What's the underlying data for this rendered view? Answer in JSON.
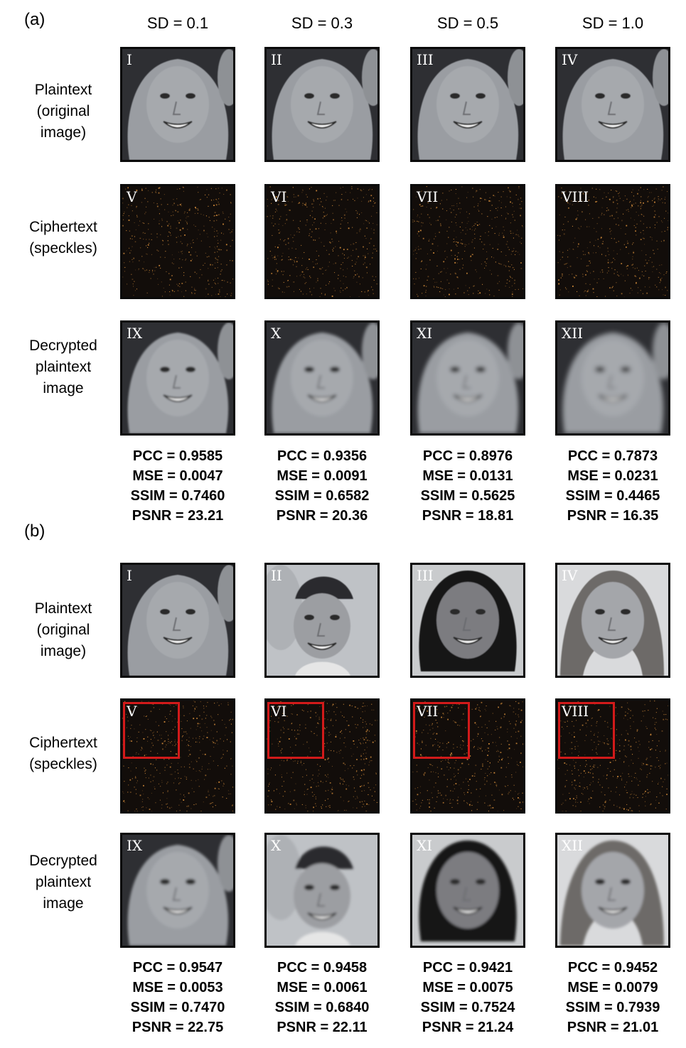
{
  "panels": [
    {
      "label": "(a)",
      "col_headers": [
        "SD = 0.1",
        "SD = 0.3",
        "SD = 0.5",
        "SD = 1.0"
      ],
      "row_labels": [
        "Plaintext\n(original\nimage)",
        "Ciphertext\n(speckles)",
        "Decrypted\nplaintext\nimage"
      ],
      "tiles": [
        [
          "I",
          "II",
          "III",
          "IV"
        ],
        [
          "V",
          "VI",
          "VII",
          "VIII"
        ],
        [
          "IX",
          "X",
          "XI",
          "XII"
        ]
      ],
      "metrics": [
        [
          "PCC = 0.9585",
          "MSE = 0.0047",
          "SSIM = 0.7460",
          "PSNR = 23.21"
        ],
        [
          "PCC = 0.9356",
          "MSE = 0.0091",
          "SSIM = 0.6582",
          "PSNR = 20.36"
        ],
        [
          "PCC = 0.8976",
          "MSE = 0.0131",
          "SSIM = 0.5625",
          "PSNR = 18.81"
        ],
        [
          "PCC = 0.7873",
          "MSE = 0.0231",
          "SSIM = 0.4465",
          "PSNR = 16.35"
        ]
      ]
    },
    {
      "label": "(b)",
      "row_labels": [
        "Plaintext\n(original\nimage)",
        "Ciphertext\n(speckles)",
        "Decrypted\nplaintext\nimage"
      ],
      "tiles": [
        [
          "I",
          "II",
          "III",
          "IV"
        ],
        [
          "V",
          "VI",
          "VII",
          "VIII"
        ],
        [
          "IX",
          "X",
          "XI",
          "XII"
        ]
      ],
      "metrics": [
        [
          "PCC = 0.9547",
          "MSE = 0.0053",
          "SSIM = 0.7470",
          "PSNR = 22.75"
        ],
        [
          "PCC = 0.9458",
          "MSE = 0.0061",
          "SSIM = 0.6840",
          "PSNR = 22.11"
        ],
        [
          "PCC = 0.9421",
          "MSE = 0.0075",
          "SSIM = 0.7524",
          "PSNR = 21.24"
        ],
        [
          "PCC = 0.9452",
          "MSE = 0.0079",
          "SSIM = 0.7939",
          "PSNR = 21.01"
        ]
      ]
    }
  ],
  "colors": {
    "roi": "#d21a1a",
    "speckle": "#d08a3a"
  }
}
